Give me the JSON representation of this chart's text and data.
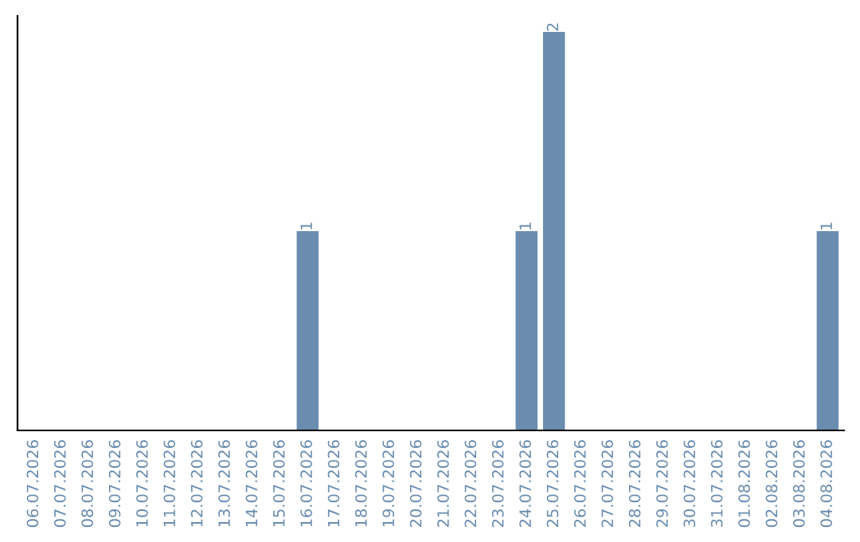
{
  "chart_data": {
    "type": "bar",
    "categories": [
      "06.07.2026",
      "07.07.2026",
      "08.07.2026",
      "09.07.2026",
      "10.07.2026",
      "11.07.2026",
      "12.07.2026",
      "13.07.2026",
      "14.07.2026",
      "15.07.2026",
      "16.07.2026",
      "17.07.2026",
      "18.07.2026",
      "19.07.2026",
      "20.07.2026",
      "21.07.2026",
      "22.07.2026",
      "23.07.2026",
      "24.07.2026",
      "25.07.2026",
      "26.07.2026",
      "27.07.2026",
      "28.07.2026",
      "29.07.2026",
      "30.07.2026",
      "31.07.2026",
      "01.08.2026",
      "02.08.2026",
      "03.08.2026",
      "04.08.2026"
    ],
    "values": [
      0,
      0,
      0,
      0,
      0,
      0,
      0,
      0,
      0,
      0,
      1,
      0,
      0,
      0,
      0,
      0,
      0,
      0,
      1,
      2,
      0,
      0,
      0,
      0,
      0,
      0,
      0,
      0,
      0,
      1
    ],
    "color": "#6a8caf",
    "value_labels": [
      null,
      null,
      null,
      null,
      null,
      null,
      null,
      null,
      null,
      null,
      "1",
      null,
      null,
      null,
      null,
      null,
      null,
      null,
      "1",
      "2",
      null,
      null,
      null,
      null,
      null,
      null,
      null,
      null,
      null,
      "1"
    ],
    "grid": false,
    "legend": false
  }
}
